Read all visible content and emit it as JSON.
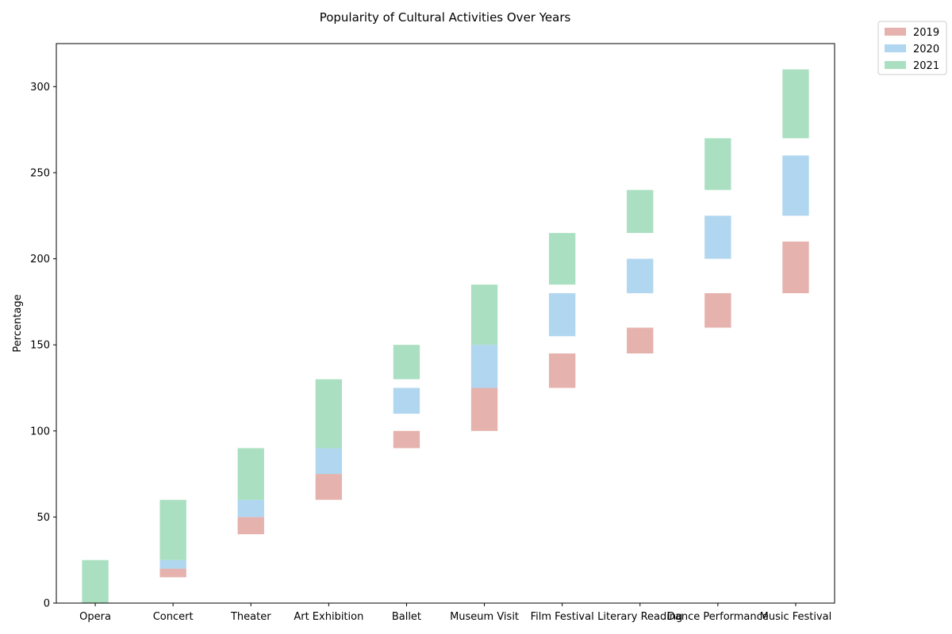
{
  "chart_data": {
    "type": "bar",
    "title": "Popularity of Cultural Activities Over Years",
    "xlabel": "",
    "ylabel": "Percentage",
    "ylim": [
      0,
      325
    ],
    "yticks": [
      0,
      50,
      100,
      150,
      200,
      250,
      300
    ],
    "categories": [
      "Opera",
      "Concert",
      "Theater",
      "Art Exhibition",
      "Ballet",
      "Museum Visit",
      "Film Festival",
      "Literary Reading",
      "Dance Performance",
      "Music Festival"
    ],
    "series": [
      {
        "name": "2019",
        "color": "#e5b2ad",
        "ranges": [
          [
            0,
            0
          ],
          [
            15,
            20
          ],
          [
            40,
            50
          ],
          [
            60,
            75
          ],
          [
            90,
            100
          ],
          [
            100,
            125
          ],
          [
            125,
            145
          ],
          [
            145,
            160
          ],
          [
            160,
            180
          ],
          [
            180,
            210
          ]
        ]
      },
      {
        "name": "2020",
        "color": "#b0d6f0",
        "ranges": [
          [
            0,
            0
          ],
          [
            20,
            25
          ],
          [
            50,
            60
          ],
          [
            75,
            90
          ],
          [
            110,
            125
          ],
          [
            125,
            150
          ],
          [
            155,
            180
          ],
          [
            180,
            200
          ],
          [
            200,
            225
          ],
          [
            225,
            260
          ]
        ]
      },
      {
        "name": "2021",
        "color": "#aae0c1",
        "ranges": [
          [
            0,
            25
          ],
          [
            25,
            60
          ],
          [
            60,
            90
          ],
          [
            90,
            130
          ],
          [
            130,
            150
          ],
          [
            150,
            185
          ],
          [
            185,
            215
          ],
          [
            215,
            240
          ],
          [
            240,
            270
          ],
          [
            270,
            310
          ]
        ]
      }
    ],
    "grid": false,
    "legend_position": "top-right outside"
  }
}
